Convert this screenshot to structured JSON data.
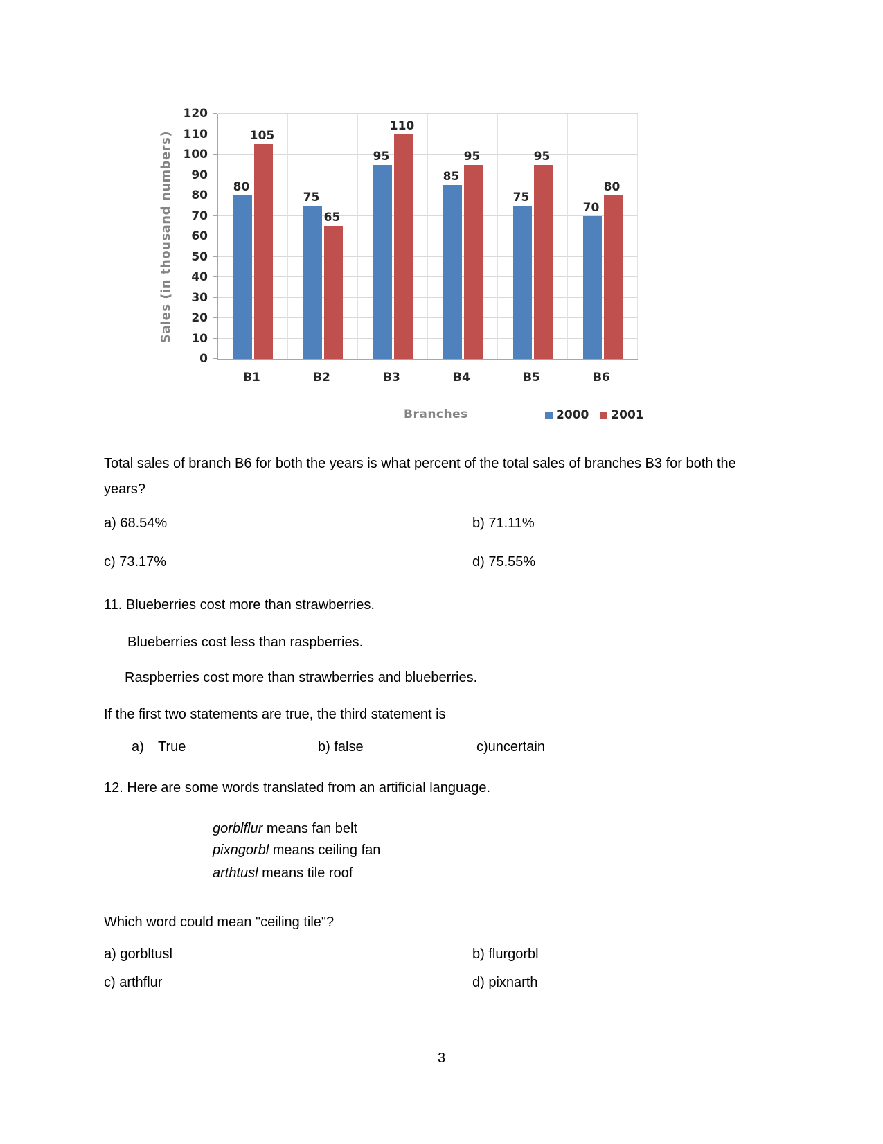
{
  "page": {
    "number": "3"
  },
  "chart_data": {
    "type": "bar",
    "categories": [
      "B1",
      "B2",
      "B3",
      "B4",
      "B5",
      "B6"
    ],
    "series": [
      {
        "name": "2000",
        "color": "#4f81bd",
        "values": [
          80,
          75,
          95,
          85,
          75,
          70
        ]
      },
      {
        "name": "2001",
        "color": "#c0504d",
        "values": [
          105,
          65,
          110,
          95,
          95,
          80
        ]
      }
    ],
    "title": "",
    "xlabel": "Branches",
    "ylabel": "Sales (in thousand numbers)",
    "ylim": [
      0,
      120
    ],
    "ytick_step": 10,
    "grid": true,
    "legend_position": "bottom-right",
    "data_labels": true,
    "axis_color": "#a6a6a6",
    "grid_color": "#d9d9d9"
  },
  "q10": {
    "stem_line1": "Total sales of branch B6 for both the years is what percent of the total sales of branches B3 for both the",
    "stem_line2": "years?",
    "option_a": "a) 68.54%",
    "option_b": "b) 71.11%",
    "option_c": "c) 73.17%",
    "option_d": "d) 75.55%"
  },
  "q11": {
    "statement1": "11. Blueberries cost more than strawberries.",
    "statement2": "Blueberries cost less than raspberries.",
    "statement3": "Raspberries cost more than strawberries and blueberries.",
    "prompt": "If the first two statements are true, the third statement is",
    "option_a_label": "a)",
    "option_a_text": "True",
    "option_b": "b) false",
    "option_c": "c)uncertain"
  },
  "q12": {
    "intro": "12. Here are some words translated from an artificial language.",
    "glossary": [
      {
        "word": "gorblflur",
        "rest": " means fan belt"
      },
      {
        "word": "pixngorbl",
        "rest": " means ceiling fan"
      },
      {
        "word": "arthtusl",
        "rest": " means tile roof"
      }
    ],
    "prompt": "Which word could mean \"ceiling tile\"?",
    "option_a": "a) gorbltusl",
    "option_b": "b) flurgorbl",
    "option_c": "c) arthflur",
    "option_d": "d) pixnarth"
  }
}
